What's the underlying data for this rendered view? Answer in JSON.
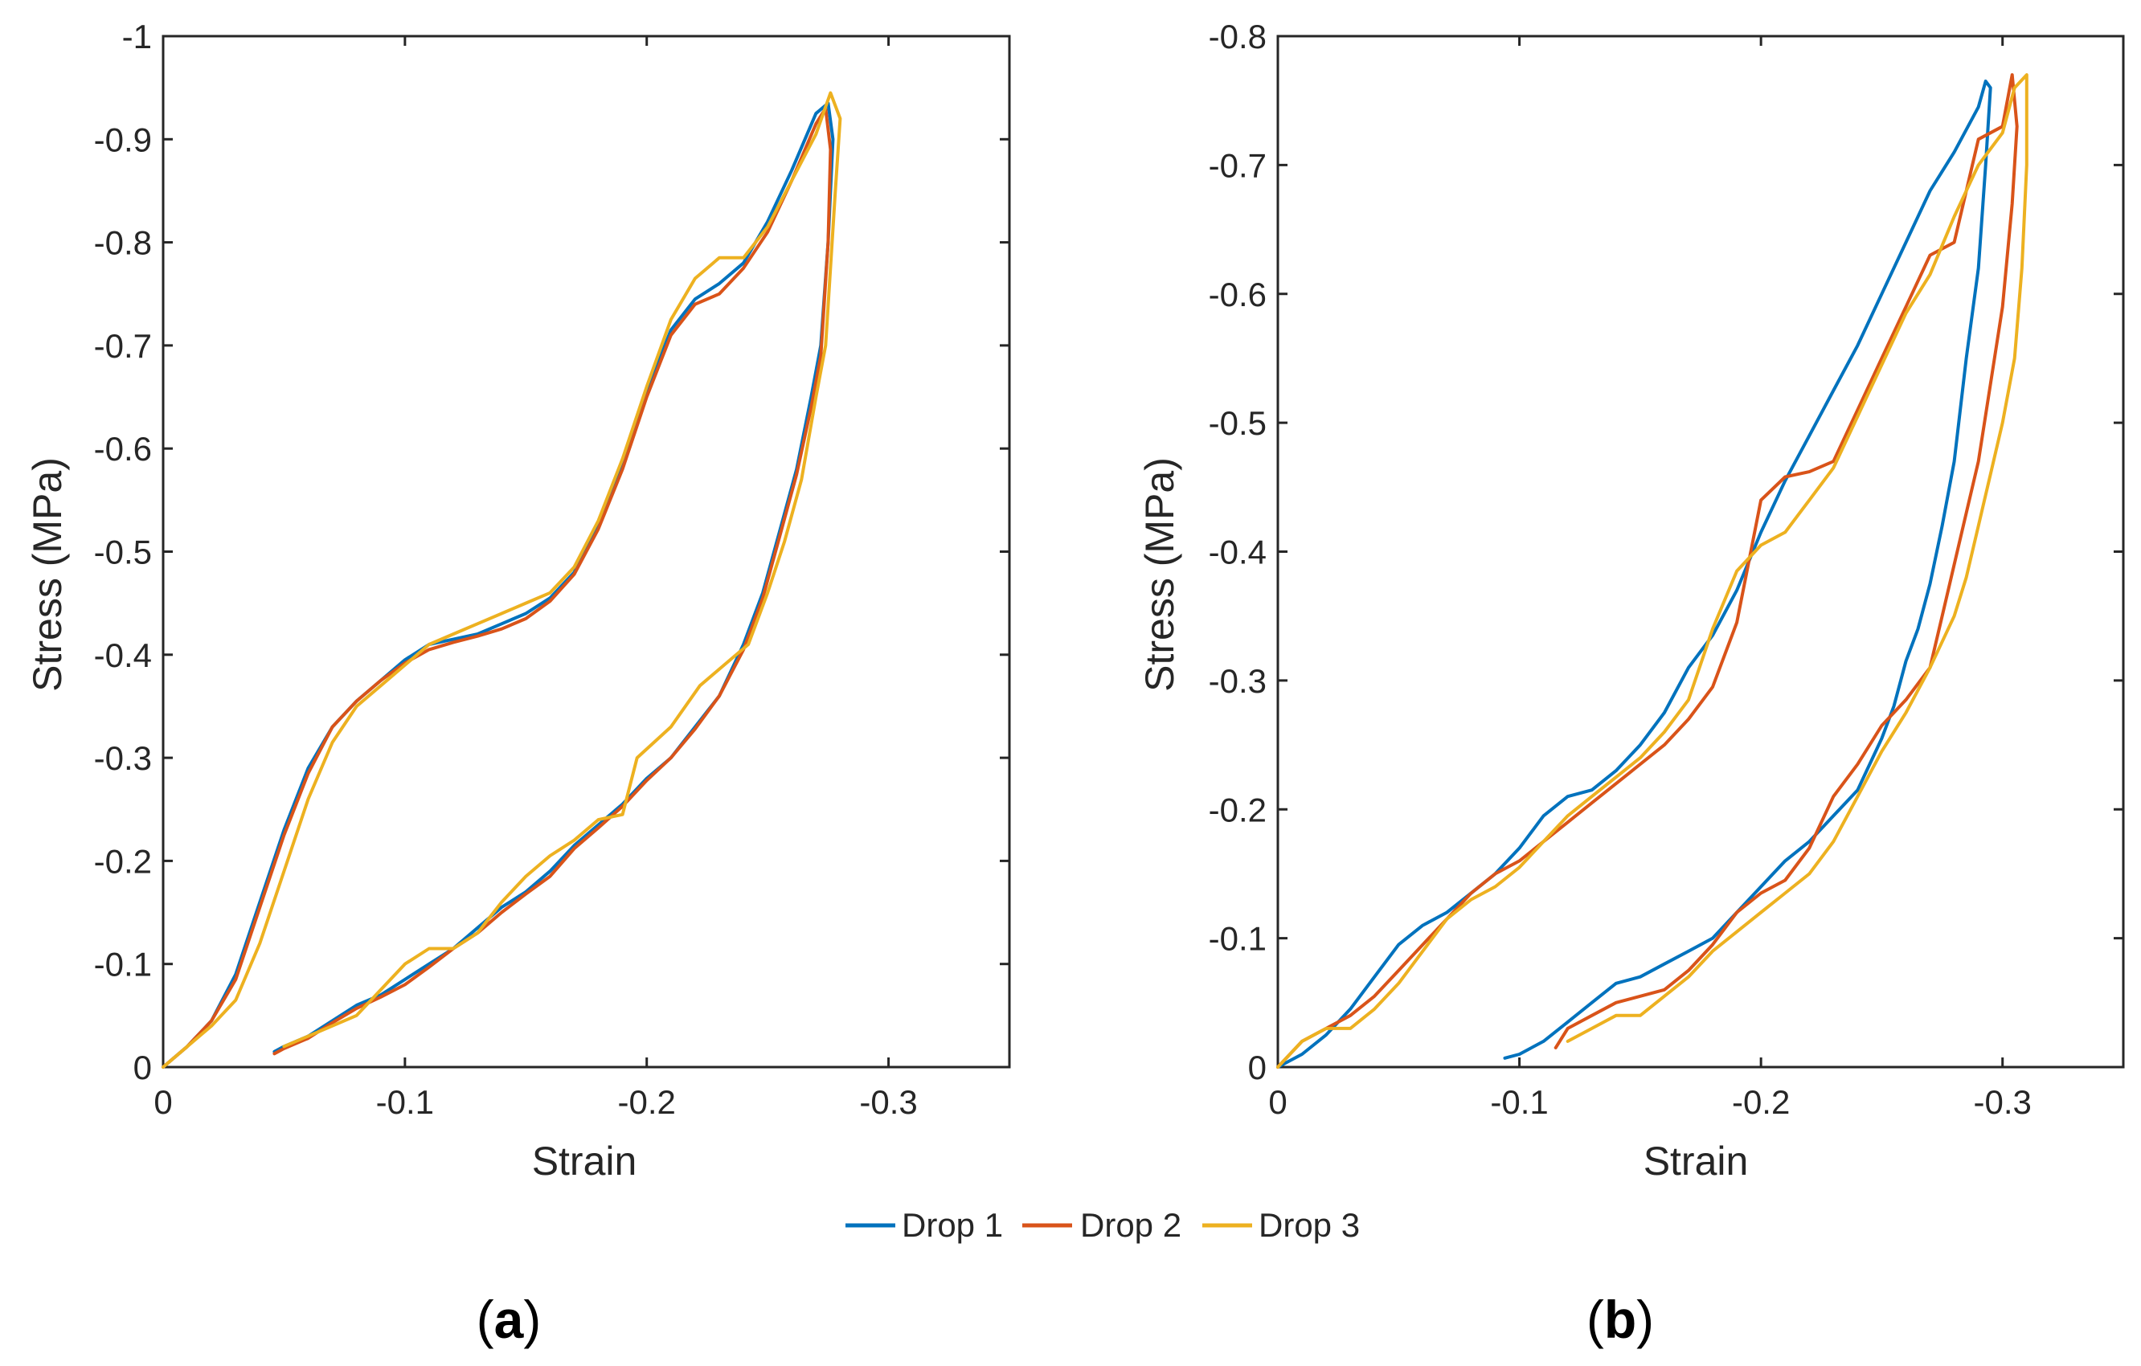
{
  "figure": {
    "legend": [
      {
        "name": "Drop 1",
        "color": "#0072BD"
      },
      {
        "name": "Drop 2",
        "color": "#D95319"
      },
      {
        "name": "Drop 3",
        "color": "#EDB120"
      }
    ],
    "legend_placement": "bottom-center"
  },
  "chart_data": [
    {
      "type": "line",
      "panel_label": "(a)",
      "panel_letter": "a",
      "xlabel": "Strain",
      "ylabel": "Stress (MPa)",
      "xlim": [
        0,
        -0.35
      ],
      "ylim": [
        0,
        -1
      ],
      "xticks": [
        0,
        -0.1,
        -0.2,
        -0.3
      ],
      "xtick_labels": [
        "0",
        "-0.1",
        "-0.2",
        "-0.3"
      ],
      "yticks": [
        0,
        -0.1,
        -0.2,
        -0.3,
        -0.4,
        -0.5,
        -0.6,
        -0.7,
        -0.8,
        -0.9,
        -1
      ],
      "ytick_labels": [
        "0",
        "-0.1",
        "-0.2",
        "-0.3",
        "-0.4",
        "-0.5",
        "-0.6",
        "-0.7",
        "-0.8",
        "-0.9",
        "-1"
      ],
      "grid": true,
      "series": [
        {
          "name": "Drop 1",
          "color": "#0072BD",
          "x": [
            0,
            -0.01,
            -0.02,
            -0.03,
            -0.04,
            -0.05,
            -0.06,
            -0.07,
            -0.08,
            -0.09,
            -0.1,
            -0.11,
            -0.12,
            -0.13,
            -0.14,
            -0.15,
            -0.16,
            -0.17,
            -0.18,
            -0.19,
            -0.2,
            -0.21,
            -0.22,
            -0.23,
            -0.24,
            -0.25,
            -0.26,
            -0.27,
            -0.275,
            -0.277,
            -0.275,
            -0.272,
            -0.268,
            -0.262,
            -0.255,
            -0.248,
            -0.24,
            -0.23,
            -0.22,
            -0.21,
            -0.2,
            -0.19,
            -0.18,
            -0.17,
            -0.16,
            -0.15,
            -0.14,
            -0.13,
            -0.12,
            -0.11,
            -0.1,
            -0.09,
            -0.08,
            -0.07,
            -0.06,
            -0.05,
            -0.046
          ],
          "y": [
            0,
            -0.02,
            -0.045,
            -0.09,
            -0.16,
            -0.23,
            -0.29,
            -0.33,
            -0.355,
            -0.375,
            -0.395,
            -0.41,
            -0.415,
            -0.42,
            -0.43,
            -0.44,
            -0.455,
            -0.48,
            -0.525,
            -0.585,
            -0.655,
            -0.715,
            -0.745,
            -0.76,
            -0.78,
            -0.82,
            -0.87,
            -0.925,
            -0.935,
            -0.9,
            -0.8,
            -0.7,
            -0.65,
            -0.58,
            -0.52,
            -0.46,
            -0.41,
            -0.36,
            -0.33,
            -0.3,
            -0.28,
            -0.255,
            -0.235,
            -0.215,
            -0.19,
            -0.17,
            -0.155,
            -0.135,
            -0.115,
            -0.1,
            -0.085,
            -0.07,
            -0.06,
            -0.045,
            -0.03,
            -0.02,
            -0.015
          ]
        },
        {
          "name": "Drop 2",
          "color": "#D95319",
          "x": [
            0,
            -0.01,
            -0.02,
            -0.03,
            -0.04,
            -0.05,
            -0.06,
            -0.07,
            -0.08,
            -0.09,
            -0.1,
            -0.11,
            -0.12,
            -0.13,
            -0.14,
            -0.15,
            -0.16,
            -0.17,
            -0.18,
            -0.19,
            -0.2,
            -0.21,
            -0.22,
            -0.23,
            -0.24,
            -0.25,
            -0.26,
            -0.27,
            -0.274,
            -0.276,
            -0.275,
            -0.272,
            -0.268,
            -0.262,
            -0.255,
            -0.248,
            -0.24,
            -0.23,
            -0.22,
            -0.21,
            -0.2,
            -0.19,
            -0.18,
            -0.17,
            -0.16,
            -0.15,
            -0.14,
            -0.13,
            -0.12,
            -0.11,
            -0.1,
            -0.09,
            -0.08,
            -0.07,
            -0.06,
            -0.05,
            -0.046
          ],
          "y": [
            0,
            -0.02,
            -0.045,
            -0.085,
            -0.155,
            -0.225,
            -0.285,
            -0.33,
            -0.355,
            -0.375,
            -0.392,
            -0.405,
            -0.412,
            -0.418,
            -0.425,
            -0.435,
            -0.452,
            -0.478,
            -0.522,
            -0.58,
            -0.65,
            -0.71,
            -0.74,
            -0.75,
            -0.775,
            -0.81,
            -0.86,
            -0.915,
            -0.93,
            -0.89,
            -0.8,
            -0.69,
            -0.64,
            -0.575,
            -0.515,
            -0.455,
            -0.405,
            -0.36,
            -0.328,
            -0.3,
            -0.278,
            -0.253,
            -0.232,
            -0.212,
            -0.185,
            -0.168,
            -0.15,
            -0.13,
            -0.115,
            -0.097,
            -0.08,
            -0.068,
            -0.057,
            -0.043,
            -0.028,
            -0.018,
            -0.013
          ]
        },
        {
          "name": "Drop 3",
          "color": "#EDB120",
          "x": [
            0,
            -0.01,
            -0.02,
            -0.03,
            -0.04,
            -0.05,
            -0.06,
            -0.07,
            -0.08,
            -0.09,
            -0.1,
            -0.11,
            -0.12,
            -0.13,
            -0.14,
            -0.15,
            -0.16,
            -0.17,
            -0.18,
            -0.19,
            -0.2,
            -0.21,
            -0.22,
            -0.23,
            -0.24,
            -0.25,
            -0.26,
            -0.27,
            -0.276,
            -0.28,
            -0.278,
            -0.274,
            -0.27,
            -0.264,
            -0.257,
            -0.25,
            -0.242,
            -0.232,
            -0.222,
            -0.21,
            -0.196,
            -0.19,
            -0.18,
            -0.17,
            -0.16,
            -0.15,
            -0.14,
            -0.13,
            -0.12,
            -0.11,
            -0.1,
            -0.09,
            -0.08,
            -0.07,
            -0.06,
            -0.05
          ],
          "y": [
            0,
            -0.02,
            -0.04,
            -0.065,
            -0.12,
            -0.19,
            -0.26,
            -0.315,
            -0.35,
            -0.37,
            -0.39,
            -0.41,
            -0.42,
            -0.43,
            -0.44,
            -0.45,
            -0.46,
            -0.485,
            -0.53,
            -0.59,
            -0.66,
            -0.725,
            -0.765,
            -0.785,
            -0.785,
            -0.815,
            -0.86,
            -0.905,
            -0.945,
            -0.92,
            -0.85,
            -0.7,
            -0.65,
            -0.57,
            -0.51,
            -0.46,
            -0.41,
            -0.39,
            -0.37,
            -0.33,
            -0.3,
            -0.245,
            -0.24,
            -0.22,
            -0.205,
            -0.185,
            -0.16,
            -0.13,
            -0.115,
            -0.115,
            -0.1,
            -0.075,
            -0.05,
            -0.04,
            -0.03,
            -0.02
          ]
        }
      ]
    },
    {
      "type": "line",
      "panel_label": "(b)",
      "panel_letter": "b",
      "xlabel": "Strain",
      "ylabel": "Stress (MPa)",
      "xlim": [
        0,
        -0.35
      ],
      "ylim": [
        0,
        -0.8
      ],
      "xticks": [
        0,
        -0.1,
        -0.2,
        -0.3
      ],
      "xtick_labels": [
        "0",
        "-0.1",
        "-0.2",
        "-0.3"
      ],
      "yticks": [
        0,
        -0.1,
        -0.2,
        -0.3,
        -0.4,
        -0.5,
        -0.6,
        -0.7,
        -0.8
      ],
      "ytick_labels": [
        "0",
        "-0.1",
        "-0.2",
        "-0.3",
        "-0.4",
        "-0.5",
        "-0.6",
        "-0.7",
        "-0.8"
      ],
      "grid": true,
      "series": [
        {
          "name": "Drop 1",
          "color": "#0072BD",
          "x": [
            0,
            -0.01,
            -0.02,
            -0.03,
            -0.04,
            -0.05,
            -0.06,
            -0.07,
            -0.08,
            -0.09,
            -0.1,
            -0.11,
            -0.12,
            -0.13,
            -0.14,
            -0.15,
            -0.16,
            -0.17,
            -0.18,
            -0.19,
            -0.2,
            -0.21,
            -0.22,
            -0.23,
            -0.24,
            -0.25,
            -0.26,
            -0.27,
            -0.28,
            -0.29,
            -0.293,
            -0.295,
            -0.293,
            -0.29,
            -0.285,
            -0.28,
            -0.275,
            -0.27,
            -0.265,
            -0.26,
            -0.255,
            -0.25,
            -0.245,
            -0.24,
            -0.23,
            -0.22,
            -0.21,
            -0.2,
            -0.19,
            -0.18,
            -0.17,
            -0.16,
            -0.15,
            -0.14,
            -0.13,
            -0.12,
            -0.11,
            -0.1,
            -0.094
          ],
          "y": [
            0,
            -0.01,
            -0.025,
            -0.045,
            -0.07,
            -0.095,
            -0.11,
            -0.12,
            -0.135,
            -0.15,
            -0.17,
            -0.195,
            -0.21,
            -0.215,
            -0.23,
            -0.25,
            -0.275,
            -0.31,
            -0.335,
            -0.37,
            -0.415,
            -0.455,
            -0.49,
            -0.525,
            -0.56,
            -0.6,
            -0.64,
            -0.68,
            -0.71,
            -0.745,
            -0.765,
            -0.76,
            -0.7,
            -0.62,
            -0.55,
            -0.47,
            -0.42,
            -0.375,
            -0.34,
            -0.315,
            -0.28,
            -0.255,
            -0.235,
            -0.215,
            -0.195,
            -0.175,
            -0.16,
            -0.14,
            -0.12,
            -0.1,
            -0.09,
            -0.08,
            -0.07,
            -0.065,
            -0.05,
            -0.035,
            -0.02,
            -0.01,
            -0.007
          ]
        },
        {
          "name": "Drop 2",
          "color": "#D95319",
          "x": [
            0,
            -0.01,
            -0.02,
            -0.03,
            -0.04,
            -0.05,
            -0.06,
            -0.07,
            -0.08,
            -0.09,
            -0.1,
            -0.11,
            -0.12,
            -0.13,
            -0.14,
            -0.15,
            -0.16,
            -0.17,
            -0.18,
            -0.19,
            -0.2,
            -0.21,
            -0.22,
            -0.23,
            -0.24,
            -0.25,
            -0.26,
            -0.27,
            -0.28,
            -0.29,
            -0.3,
            -0.304,
            -0.306,
            -0.304,
            -0.3,
            -0.295,
            -0.29,
            -0.285,
            -0.28,
            -0.275,
            -0.27,
            -0.26,
            -0.25,
            -0.24,
            -0.23,
            -0.22,
            -0.21,
            -0.2,
            -0.19,
            -0.18,
            -0.17,
            -0.16,
            -0.15,
            -0.14,
            -0.13,
            -0.12,
            -0.115
          ],
          "y": [
            0,
            -0.02,
            -0.03,
            -0.04,
            -0.055,
            -0.075,
            -0.095,
            -0.115,
            -0.135,
            -0.15,
            -0.16,
            -0.175,
            -0.19,
            -0.205,
            -0.22,
            -0.235,
            -0.25,
            -0.27,
            -0.295,
            -0.345,
            -0.44,
            -0.458,
            -0.462,
            -0.47,
            -0.51,
            -0.55,
            -0.59,
            -0.63,
            -0.64,
            -0.72,
            -0.73,
            -0.77,
            -0.73,
            -0.67,
            -0.59,
            -0.53,
            -0.47,
            -0.43,
            -0.39,
            -0.35,
            -0.31,
            -0.285,
            -0.265,
            -0.235,
            -0.21,
            -0.17,
            -0.145,
            -0.135,
            -0.12,
            -0.095,
            -0.075,
            -0.06,
            -0.055,
            -0.05,
            -0.04,
            -0.03,
            -0.015
          ]
        },
        {
          "name": "Drop 3",
          "color": "#EDB120",
          "x": [
            0,
            -0.01,
            -0.02,
            -0.03,
            -0.04,
            -0.05,
            -0.06,
            -0.07,
            -0.08,
            -0.09,
            -0.1,
            -0.11,
            -0.12,
            -0.13,
            -0.14,
            -0.15,
            -0.16,
            -0.17,
            -0.18,
            -0.19,
            -0.2,
            -0.21,
            -0.22,
            -0.23,
            -0.24,
            -0.25,
            -0.26,
            -0.27,
            -0.28,
            -0.29,
            -0.3,
            -0.305,
            -0.31,
            -0.31,
            -0.308,
            -0.305,
            -0.3,
            -0.295,
            -0.29,
            -0.285,
            -0.28,
            -0.27,
            -0.26,
            -0.25,
            -0.24,
            -0.23,
            -0.22,
            -0.21,
            -0.2,
            -0.19,
            -0.18,
            -0.17,
            -0.16,
            -0.15,
            -0.14,
            -0.13,
            -0.12
          ],
          "y": [
            0,
            -0.02,
            -0.03,
            -0.03,
            -0.045,
            -0.065,
            -0.09,
            -0.115,
            -0.13,
            -0.14,
            -0.155,
            -0.175,
            -0.195,
            -0.21,
            -0.225,
            -0.24,
            -0.26,
            -0.285,
            -0.34,
            -0.385,
            -0.405,
            -0.415,
            -0.44,
            -0.465,
            -0.505,
            -0.545,
            -0.585,
            -0.615,
            -0.66,
            -0.7,
            -0.725,
            -0.76,
            -0.77,
            -0.7,
            -0.62,
            -0.55,
            -0.5,
            -0.46,
            -0.42,
            -0.38,
            -0.35,
            -0.31,
            -0.275,
            -0.245,
            -0.21,
            -0.175,
            -0.15,
            -0.135,
            -0.12,
            -0.105,
            -0.09,
            -0.07,
            -0.055,
            -0.04,
            -0.04,
            -0.03,
            -0.02
          ]
        }
      ]
    }
  ]
}
